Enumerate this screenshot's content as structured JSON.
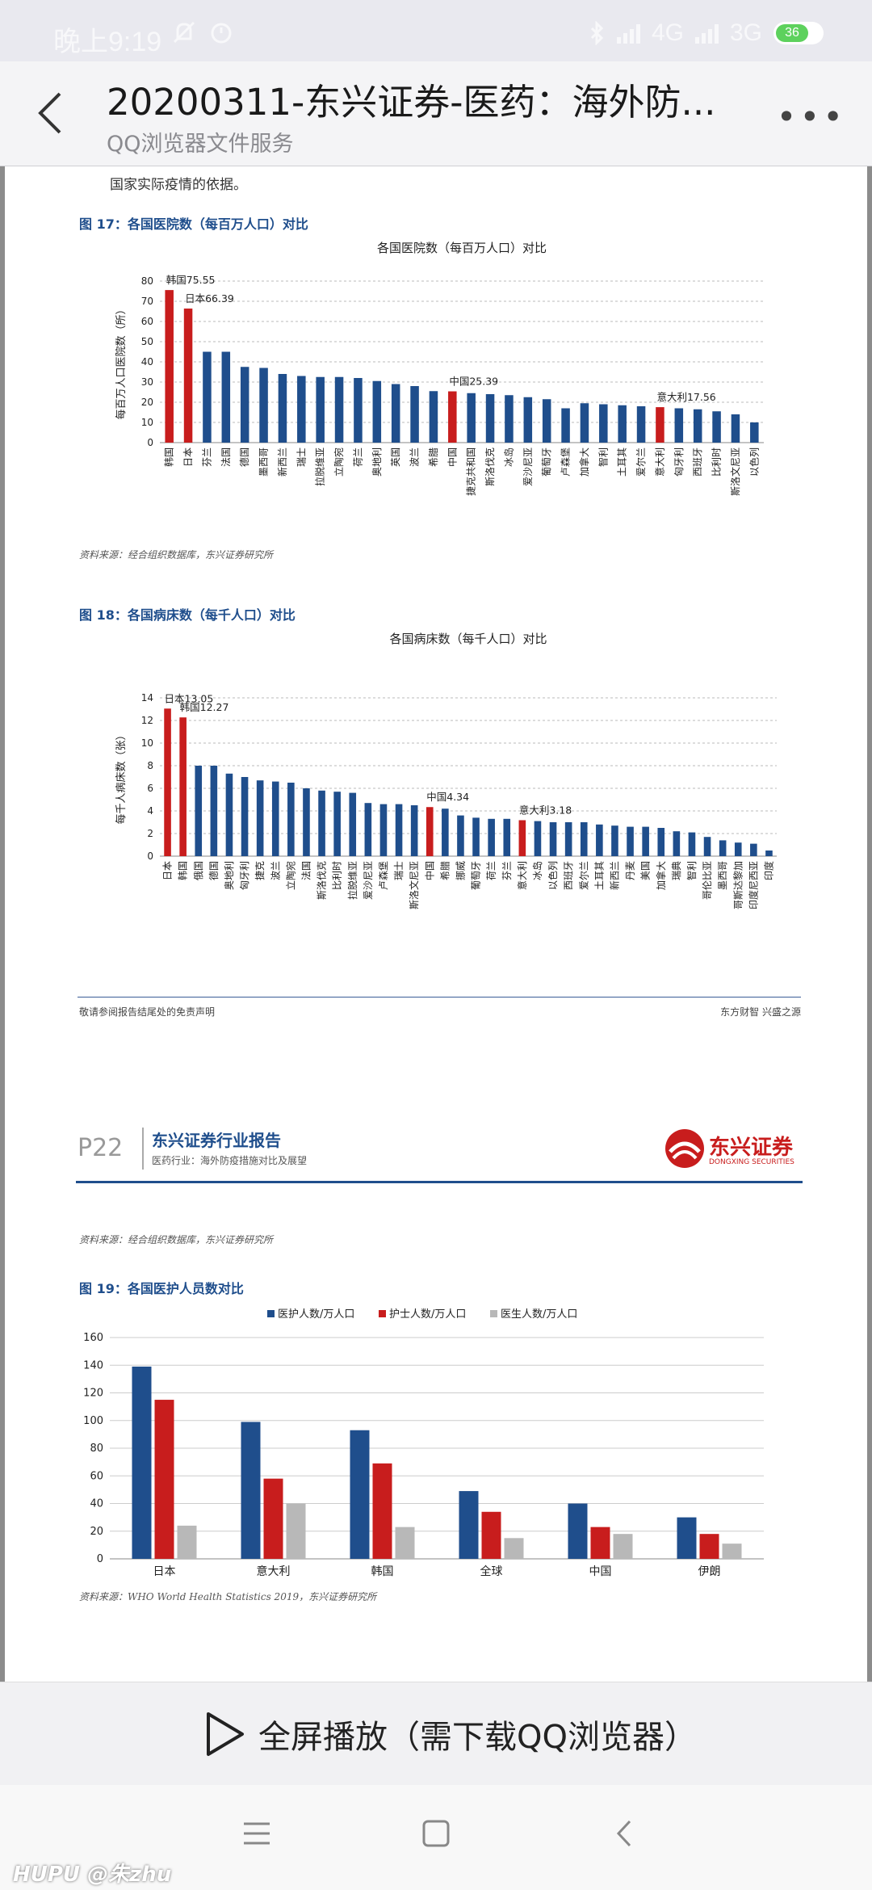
{
  "status_bar": {
    "time": "晚上9:19",
    "network_a": "4G",
    "network_b": "3G",
    "battery": "36"
  },
  "header": {
    "title": "20200311-东兴证券-医药：海外防...",
    "subtitle": "QQ浏览器文件服务"
  },
  "page1": {
    "para": "国家实际疫情的依据。",
    "fig17": {
      "title": "图 17：各国医院数（每百万人口）对比",
      "source": "资料来源：经合组织数据库，东兴证券研究所"
    },
    "fig18": {
      "title": "图 18：各国病床数（每千人口）对比",
      "source": ""
    },
    "footer_left": "敬请参阅报告结尾处的免责声明",
    "footer_right": "东方财智  兴盛之源"
  },
  "page2": {
    "page_no": "P22",
    "report_title": "东兴证券行业报告",
    "report_sub": "医药行业：海外防疫措施对比及展望",
    "brand_cn": "东兴证券",
    "brand_en": "DONGXING SECURITIES",
    "source_top": "资料来源：经合组织数据库，东兴证券研究所",
    "fig19": {
      "title": "图 19：各国医护人员数对比",
      "source": "资料来源：WHO World Health Statistics 2019，东兴证券研究所"
    }
  },
  "colors": {
    "blue": "#1f4e8c",
    "red": "#c81d1d",
    "gray": "#b8b8b8"
  },
  "chart_data": [
    {
      "type": "bar",
      "title": "各国医院数（每百万人口）对比",
      "xlabel": "",
      "ylabel": "每百万人口医院数（所）",
      "ylim": [
        0,
        80
      ],
      "yticks": [
        0,
        10,
        20,
        30,
        40,
        50,
        60,
        70,
        80
      ],
      "categories": [
        "韩国",
        "日本",
        "芬兰",
        "法国",
        "德国",
        "墨西哥",
        "新西兰",
        "瑞士",
        "拉脱维亚",
        "立陶宛",
        "荷兰",
        "奥地利",
        "英国",
        "波兰",
        "希腊",
        "中国",
        "捷克共和国",
        "斯洛伐克",
        "冰岛",
        "爱沙尼亚",
        "葡萄牙",
        "卢森堡",
        "加拿大",
        "智利",
        "土耳其",
        "爱尔兰",
        "意大利",
        "匈牙利",
        "西班牙",
        "比利时",
        "斯洛文尼亚",
        "以色列"
      ],
      "values": [
        75.55,
        66.39,
        45,
        45,
        37.5,
        37,
        34,
        33,
        32.5,
        32.5,
        32,
        30.5,
        29,
        28,
        25.5,
        25.39,
        24.5,
        24,
        23.5,
        22.5,
        21.5,
        17,
        19.5,
        19,
        18.5,
        18,
        17.56,
        17,
        16.5,
        15.5,
        14,
        10
      ],
      "highlight": [
        "韩国",
        "日本",
        "中国",
        "意大利"
      ],
      "annotations": [
        {
          "category": "韩国",
          "text": "韩国75.55"
        },
        {
          "category": "日本",
          "text": "日本66.39"
        },
        {
          "category": "中国",
          "text": "中国25.39"
        },
        {
          "category": "意大利",
          "text": "意大利17.56"
        }
      ]
    },
    {
      "type": "bar",
      "title": "各国病床数（每千人口）对比",
      "xlabel": "",
      "ylabel": "每千人病床数（张）",
      "ylim": [
        0,
        14
      ],
      "yticks": [
        0,
        2,
        4,
        6,
        8,
        10,
        12,
        14
      ],
      "categories": [
        "日本",
        "韩国",
        "俄国",
        "德国",
        "奥地利",
        "匈牙利",
        "捷克",
        "波兰",
        "立陶宛",
        "法国",
        "斯洛伐克",
        "比利时",
        "拉脱维亚",
        "爱沙尼亚",
        "卢森堡",
        "瑞士",
        "斯洛文尼亚",
        "中国",
        "希腊",
        "挪威",
        "葡萄牙",
        "荷兰",
        "芬兰",
        "意大利",
        "冰岛",
        "以色列",
        "西班牙",
        "爱尔兰",
        "土耳其",
        "新西兰",
        "丹麦",
        "美国",
        "加拿大",
        "瑞典",
        "智利",
        "哥伦比亚",
        "墨西哥",
        "哥斯达黎加",
        "印度尼西亚",
        "印度"
      ],
      "values": [
        13.05,
        12.27,
        8,
        8,
        7.3,
        7,
        6.7,
        6.6,
        6.5,
        6,
        5.8,
        5.7,
        5.6,
        4.7,
        4.6,
        4.6,
        4.5,
        4.34,
        4.2,
        3.6,
        3.4,
        3.3,
        3.3,
        3.18,
        3.1,
        3,
        3,
        3,
        2.8,
        2.7,
        2.6,
        2.6,
        2.5,
        2.2,
        2.1,
        1.7,
        1.4,
        1.2,
        1.1,
        0.5
      ],
      "highlight": [
        "日本",
        "韩国",
        "中国",
        "意大利"
      ],
      "annotations": [
        {
          "category": "日本",
          "text": "日本13.05"
        },
        {
          "category": "韩国",
          "text": "韩国12.27"
        },
        {
          "category": "中国",
          "text": "中国4.34"
        },
        {
          "category": "意大利",
          "text": "意大利3.18"
        }
      ]
    },
    {
      "type": "bar",
      "title": "",
      "xlabel": "",
      "ylabel": "",
      "ylim": [
        0,
        160
      ],
      "yticks": [
        0,
        20,
        40,
        60,
        80,
        100,
        120,
        140,
        160
      ],
      "legend_position": "top",
      "categories": [
        "日本",
        "意大利",
        "韩国",
        "全球",
        "中国",
        "伊朗"
      ],
      "series": [
        {
          "name": "医护人数/万人口",
          "color": "#1f4e8c",
          "values": [
            139,
            99,
            93,
            49,
            40,
            30
          ]
        },
        {
          "name": "护士人数/万人口",
          "color": "#c81d1d",
          "values": [
            115,
            58,
            69,
            34,
            23,
            18
          ]
        },
        {
          "name": "医生人数/万人口",
          "color": "#b8b8b8",
          "values": [
            24,
            40,
            23,
            15,
            18,
            11
          ]
        }
      ]
    }
  ],
  "bottom": {
    "play_label": "全屏播放（需下载QQ浏览器）"
  },
  "watermark": "HUPU @朱zhu"
}
